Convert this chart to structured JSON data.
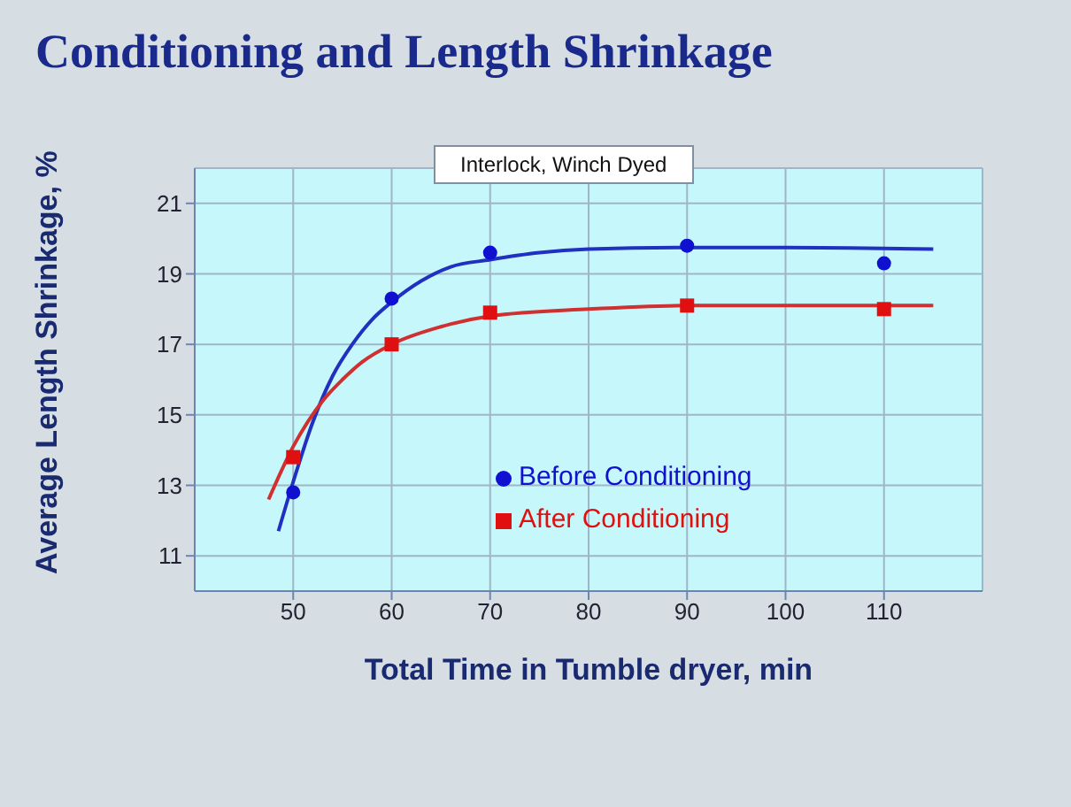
{
  "chart_data": {
    "type": "scatter",
    "title": "Conditioning and Length Shrinkage",
    "subtitle": "Interlock, Winch Dyed",
    "xlabel": "Total Time in Tumble dryer,  min",
    "ylabel": "Average Length Shrinkage,  %",
    "x": [
      50,
      60,
      70,
      90,
      110
    ],
    "series": [
      {
        "name": "Before Conditioning",
        "marker": "circle",
        "color": "#1010d0",
        "values": [
          12.8,
          18.3,
          19.6,
          19.8,
          19.3
        ]
      },
      {
        "name": "After Conditioning",
        "marker": "square",
        "color": "#e01010",
        "values": [
          13.8,
          17.0,
          17.9,
          18.1,
          18.0
        ]
      },
      {
        "type": "line",
        "color": "#2030c0",
        "x": [
          48.5,
          50,
          52,
          54,
          56,
          58,
          60,
          63,
          66,
          70,
          75,
          80,
          90,
          100,
          115
        ],
        "values": [
          11.7,
          13.1,
          14.8,
          16.1,
          17.0,
          17.7,
          18.2,
          18.8,
          19.2,
          19.4,
          19.6,
          19.7,
          19.75,
          19.75,
          19.7
        ]
      },
      {
        "type": "line",
        "color": "#d03030",
        "x": [
          47.5,
          50,
          53,
          55,
          57,
          60,
          65,
          70,
          80,
          90,
          100,
          115
        ],
        "values": [
          12.6,
          14.1,
          15.4,
          16.0,
          16.5,
          17.0,
          17.5,
          17.8,
          18.0,
          18.1,
          18.1,
          18.1
        ]
      }
    ],
    "xlim": [
      40,
      120
    ],
    "xticks": [
      50,
      60,
      70,
      80,
      90,
      100,
      110
    ],
    "ylim": [
      10,
      22
    ],
    "yticks": [
      11,
      13,
      15,
      17,
      19,
      21
    ],
    "grid": true,
    "legend": "center"
  }
}
